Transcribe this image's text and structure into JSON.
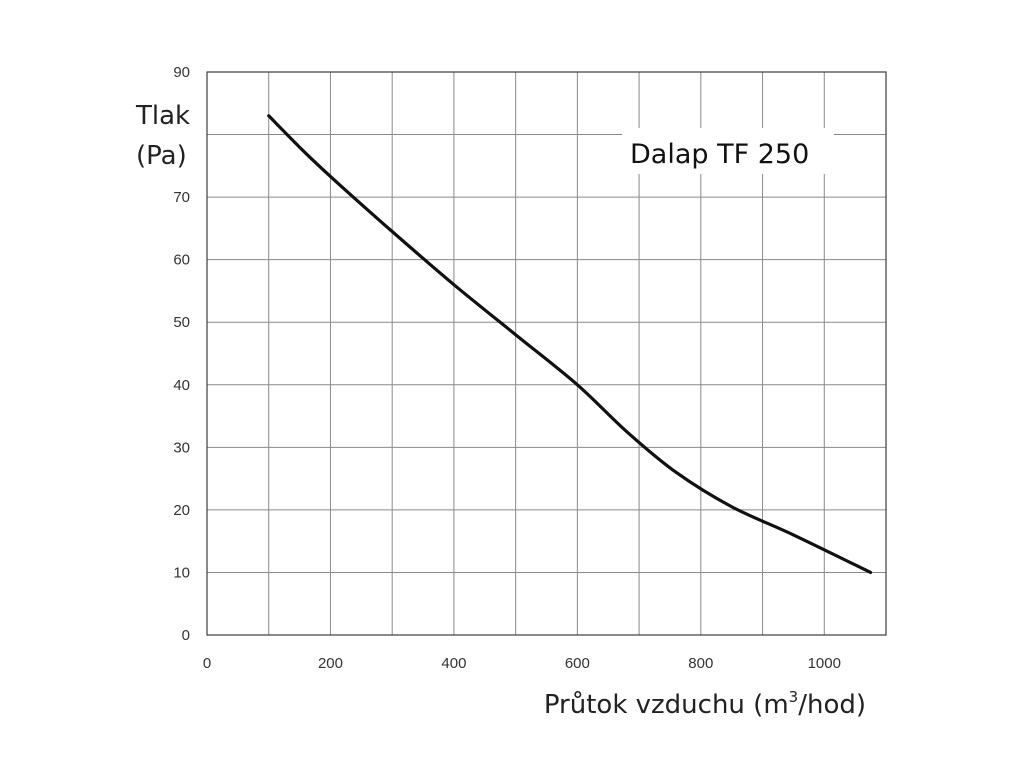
{
  "chart_data": {
    "type": "line",
    "title": "Dalap TF 250",
    "ylabel_line1": "Tlak",
    "ylabel_line2": "(Pa)",
    "xlabel_prefix": "Průtok vzduchu (m",
    "xlabel_sup": "3",
    "xlabel_suffix": "/hod)",
    "xlim": [
      0,
      1100
    ],
    "ylim": [
      0,
      90
    ],
    "x_ticks": [
      0,
      200,
      400,
      600,
      800,
      1000
    ],
    "y_ticks": [
      0,
      10,
      20,
      30,
      40,
      50,
      60,
      70,
      80,
      90
    ],
    "x_grid_step": 100,
    "y_grid_step": 10,
    "grid": true,
    "series": [
      {
        "color": "#111111",
        "x": [
          100,
          160,
          220,
          300,
          400,
          500,
          600,
          680,
          760,
          850,
          950,
          1075
        ],
        "y": [
          83,
          77,
          71.5,
          64.5,
          56,
          48,
          40,
          32.5,
          26,
          20.5,
          16,
          10
        ]
      }
    ]
  }
}
